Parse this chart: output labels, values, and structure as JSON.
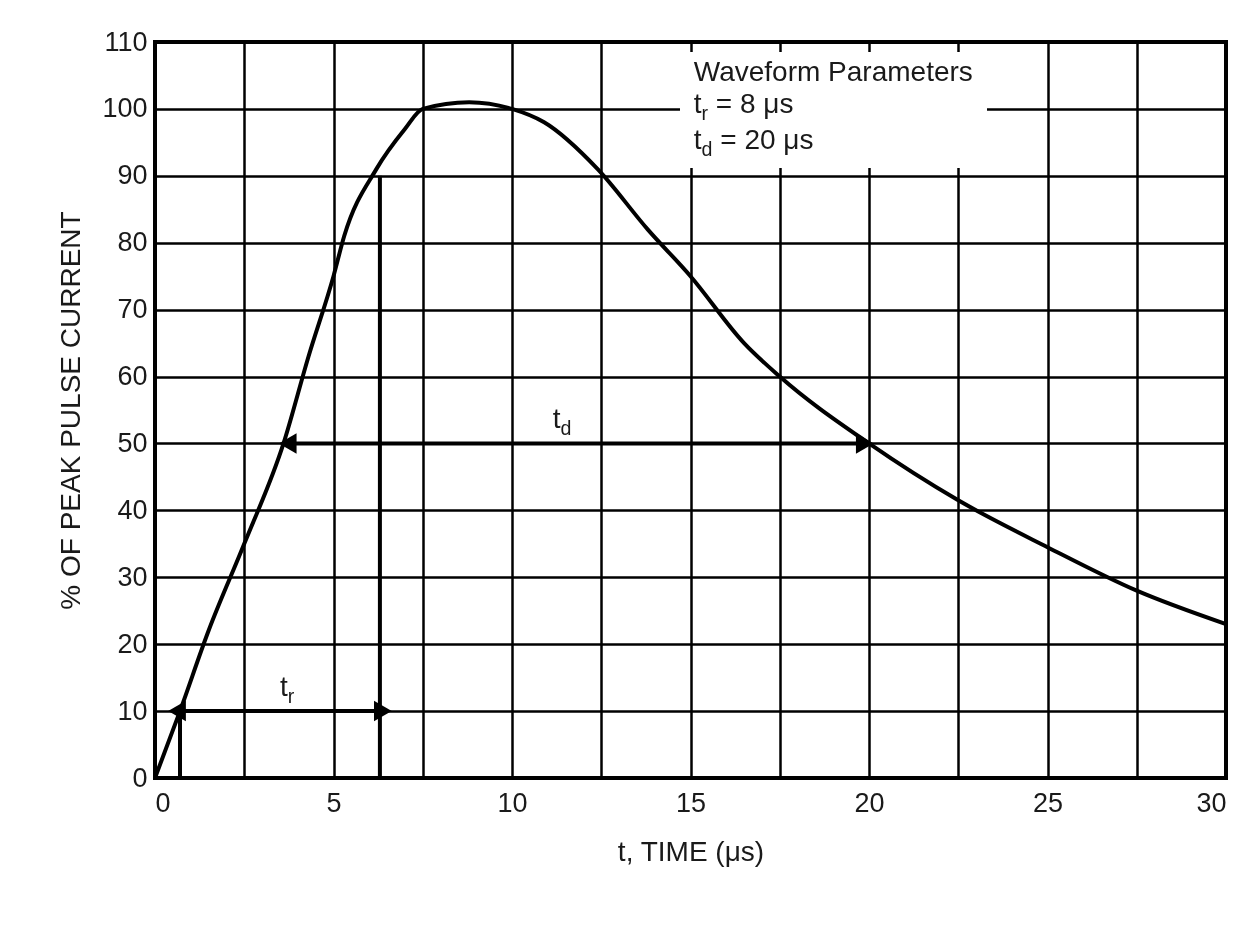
{
  "chart_data": {
    "type": "line",
    "xlabel": "t, TIME (μs)",
    "ylabel": "% OF PEAK PULSE CURRENT",
    "xlim": [
      0,
      30
    ],
    "ylim": [
      0,
      110
    ],
    "xticks": [
      0,
      {
        "value": 2.5,
        "label": null
      },
      5,
      {
        "value": 7.5,
        "label": null
      },
      10,
      {
        "value": 12.5,
        "label": null
      },
      15,
      {
        "value": 17.5,
        "label": null
      },
      20,
      {
        "value": 22.5,
        "label": null
      },
      25,
      {
        "value": 27.5,
        "label": null
      },
      30
    ],
    "yticks": [
      0,
      10,
      20,
      30,
      40,
      50,
      60,
      70,
      80,
      90,
      100,
      110
    ],
    "grid": true,
    "series": [
      {
        "color": "#000000",
        "x": [
          0,
          0.7,
          1.5,
          2.5,
          3.6,
          4.3,
          5,
          5.3,
          6.2,
          7,
          7.5,
          8.8,
          10,
          10.9,
          12.4,
          13.8,
          15,
          16.5,
          17.5,
          20,
          22.5,
          25,
          27.5,
          30
        ],
        "values": [
          0,
          10,
          22,
          35,
          50,
          63,
          75,
          81,
          91,
          97,
          100,
          101,
          100,
          98,
          91,
          82,
          75,
          65,
          60,
          50,
          41.5,
          34.5,
          28,
          23
        ]
      },
      {
        "color": "#000000",
        "x": [
          0.7,
          0.7
        ],
        "values": [
          0,
          10
        ]
      },
      {
        "color": "#000000",
        "x": [
          6.3,
          6.3
        ],
        "values": [
          0,
          90
        ]
      },
      {
        "color": "#000000",
        "x": [
          0.7,
          6.3
        ],
        "values": [
          10,
          10
        ],
        "marker": "triangle"
      },
      {
        "color": "#000000",
        "x": [
          3.8,
          19.8
        ],
        "values": [
          50,
          50
        ],
        "marker": "triangle"
      }
    ],
    "annotations": [
      {
        "text": "t$_{r}$",
        "x": 3.7,
        "y": 10
      },
      {
        "text": "t$_{d}$",
        "x": 11.4,
        "y": 50
      },
      "Waveform Parameters",
      "t$_{r}$ = 8 μs",
      "t$_{d}$ = 20 μs"
    ]
  }
}
